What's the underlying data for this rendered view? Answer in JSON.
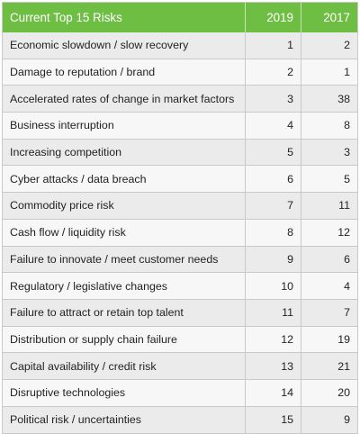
{
  "table": {
    "headers": {
      "risk": "Current Top 15 Risks",
      "year_a": "2019",
      "year_b": "2017"
    },
    "rows": [
      {
        "risk": "Economic slowdown / slow recovery",
        "rank_2019": "1",
        "rank_2017": "2"
      },
      {
        "risk": "Damage to reputation / brand",
        "rank_2019": "2",
        "rank_2017": "1"
      },
      {
        "risk": "Accelerated rates of change in market factors",
        "rank_2019": "3",
        "rank_2017": "38"
      },
      {
        "risk": "Business interruption",
        "rank_2019": "4",
        "rank_2017": "8"
      },
      {
        "risk": "Increasing competition",
        "rank_2019": "5",
        "rank_2017": "3"
      },
      {
        "risk": "Cyber attacks / data breach",
        "rank_2019": "6",
        "rank_2017": "5"
      },
      {
        "risk": "Commodity price risk",
        "rank_2019": "7",
        "rank_2017": "11"
      },
      {
        "risk": "Cash flow / liquidity risk",
        "rank_2019": "8",
        "rank_2017": "12"
      },
      {
        "risk": "Failure to innovate / meet customer needs",
        "rank_2019": "9",
        "rank_2017": "6"
      },
      {
        "risk": "Regulatory / legislative changes",
        "rank_2019": "10",
        "rank_2017": "4"
      },
      {
        "risk": "Failure to attract or retain top talent",
        "rank_2019": "11",
        "rank_2017": "7"
      },
      {
        "risk": "Distribution or supply chain failure",
        "rank_2019": "12",
        "rank_2017": "19"
      },
      {
        "risk": "Capital availability / credit risk",
        "rank_2019": "13",
        "rank_2017": "21"
      },
      {
        "risk": "Disruptive technologies",
        "rank_2019": "14",
        "rank_2017": "20"
      },
      {
        "risk": "Political risk / uncertainties",
        "rank_2019": "15",
        "rank_2017": "9"
      }
    ]
  },
  "colors": {
    "header_bg": "#6fbe44",
    "header_text": "#ffffff",
    "row_odd": "#ebebeb",
    "row_even": "#f7f7f7",
    "grid": "#c9c9c9"
  }
}
